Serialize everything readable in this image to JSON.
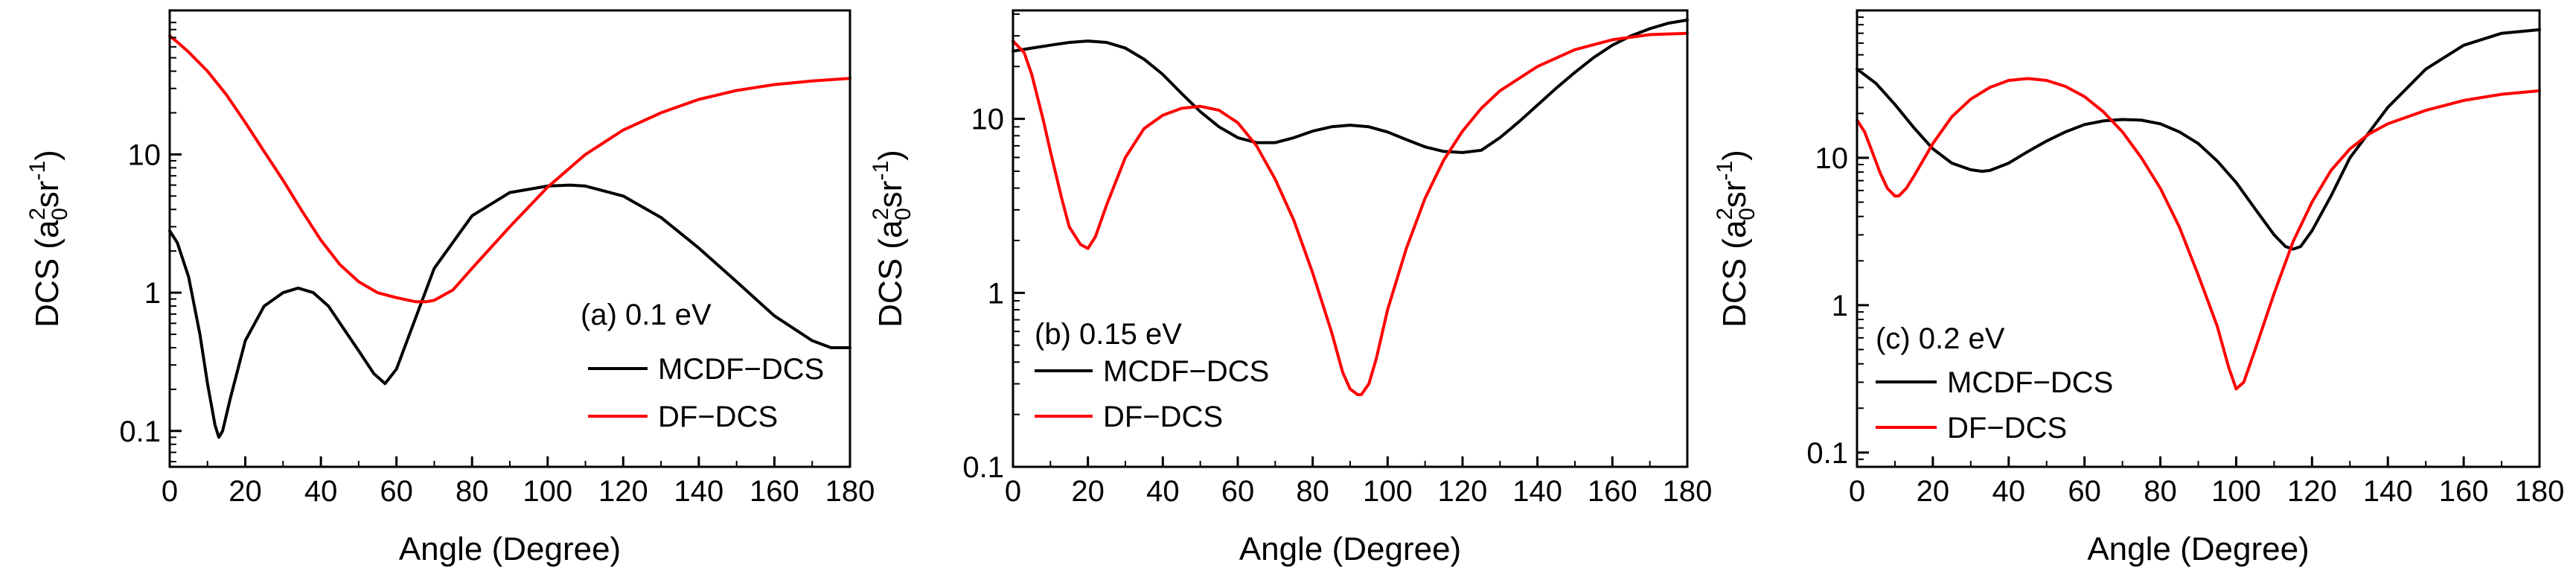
{
  "colors": {
    "mcdf": "#000000",
    "df": "#ff0000",
    "axis": "#000000"
  },
  "chart_data": [
    {
      "type": "line",
      "panel_label": "(a) 0.1 eV",
      "xlabel": "Angle (Degree)",
      "ylabel": {
        "base": "DCS (a",
        "sub": "0",
        "sup": "2",
        "mid": "sr",
        "sup2": "-1",
        "end": ")"
      },
      "xlim": [
        0,
        180
      ],
      "ylim": [
        0.055,
        110
      ],
      "yscale": "log",
      "xticks": [
        0,
        20,
        40,
        60,
        80,
        100,
        120,
        140,
        160,
        180
      ],
      "yticks": [
        0.1,
        1,
        10
      ],
      "ytick_labels": [
        "0.1",
        "1",
        "10"
      ],
      "legend_position": "lower-right",
      "series": [
        {
          "name": "MCDF−DCS",
          "color": "#000000",
          "x": [
            0,
            2,
            5,
            8,
            10,
            12,
            13,
            14,
            16,
            20,
            25,
            30,
            34,
            38,
            42,
            46,
            50,
            54,
            57,
            60,
            65,
            70,
            80,
            90,
            100,
            106,
            110,
            120,
            130,
            140,
            150,
            160,
            170,
            175,
            180
          ],
          "y": [
            2.8,
            2.3,
            1.3,
            0.5,
            0.22,
            0.11,
            0.09,
            0.1,
            0.17,
            0.45,
            0.8,
            1.0,
            1.08,
            1.0,
            0.8,
            0.55,
            0.38,
            0.26,
            0.22,
            0.28,
            0.65,
            1.5,
            3.6,
            5.3,
            5.9,
            6.0,
            5.9,
            5.0,
            3.5,
            2.1,
            1.2,
            0.68,
            0.45,
            0.4,
            0.4
          ]
        },
        {
          "name": "DF−DCS",
          "color": "#ff0000",
          "x": [
            0,
            2,
            5,
            10,
            15,
            20,
            25,
            30,
            35,
            40,
            45,
            50,
            55,
            60,
            65,
            68,
            70,
            75,
            80,
            90,
            100,
            110,
            120,
            130,
            140,
            150,
            160,
            170,
            180
          ],
          "y": [
            72,
            65,
            55,
            40,
            27,
            17,
            10.5,
            6.5,
            3.9,
            2.4,
            1.6,
            1.2,
            1.0,
            0.92,
            0.86,
            0.86,
            0.88,
            1.05,
            1.5,
            3.0,
            5.8,
            10,
            15,
            20,
            25,
            29,
            32,
            34,
            35.5
          ]
        }
      ]
    },
    {
      "type": "line",
      "panel_label": "(b) 0.15 eV",
      "xlabel": "Angle (Degree)",
      "ylabel": {
        "base": "DCS (a",
        "sub": "0",
        "sup": "2",
        "mid": "sr",
        "sup2": "-1",
        "end": ")"
      },
      "xlim": [
        0,
        180
      ],
      "ylim": [
        0.1,
        42
      ],
      "yscale": "log",
      "xticks": [
        0,
        20,
        40,
        60,
        80,
        100,
        120,
        140,
        160,
        180
      ],
      "yticks": [
        0.1,
        1,
        10
      ],
      "ytick_labels": [
        "0.1",
        "1",
        "10"
      ],
      "legend_position": "lower-left",
      "series": [
        {
          "name": "MCDF−DCS",
          "color": "#000000",
          "x": [
            0,
            5,
            10,
            15,
            20,
            25,
            30,
            35,
            40,
            45,
            50,
            55,
            60,
            65,
            70,
            75,
            80,
            85,
            90,
            95,
            100,
            105,
            110,
            115,
            120,
            125,
            130,
            135,
            140,
            145,
            150,
            155,
            160,
            165,
            170,
            175,
            180
          ],
          "y": [
            24.5,
            25.5,
            26.5,
            27.5,
            28,
            27.5,
            25.5,
            22,
            18,
            14,
            11,
            9,
            7.8,
            7.3,
            7.3,
            7.8,
            8.5,
            9.0,
            9.2,
            9.0,
            8.4,
            7.6,
            6.9,
            6.5,
            6.4,
            6.6,
            7.8,
            9.6,
            12,
            15,
            18.5,
            22.5,
            26.5,
            30,
            33,
            35.5,
            37
          ]
        },
        {
          "name": "DF−DCS",
          "color": "#ff0000",
          "x": [
            0,
            3,
            5,
            8,
            10,
            13,
            15,
            18,
            20,
            22,
            25,
            30,
            35,
            40,
            45,
            50,
            55,
            60,
            65,
            70,
            75,
            80,
            85,
            88,
            90,
            92,
            93,
            95,
            97,
            100,
            105,
            110,
            115,
            120,
            125,
            130,
            140,
            150,
            160,
            170,
            180
          ],
          "y": [
            28,
            24,
            18,
            10,
            6.5,
            3.5,
            2.4,
            1.9,
            1.8,
            2.1,
            3.2,
            6.0,
            8.8,
            10.5,
            11.5,
            11.8,
            11.2,
            9.5,
            7.0,
            4.5,
            2.6,
            1.3,
            0.6,
            0.35,
            0.28,
            0.26,
            0.26,
            0.3,
            0.42,
            0.8,
            1.8,
            3.5,
            5.8,
            8.5,
            11.5,
            14.5,
            20,
            25,
            28.5,
            30.5,
            31
          ]
        }
      ]
    },
    {
      "type": "line",
      "panel_label": "(c) 0.2 eV",
      "xlabel": "Angle (Degree)",
      "ylabel": {
        "base": "DCS (a",
        "sub": "0",
        "sup": "2",
        "mid": "sr",
        "sup2": "-1",
        "end": ")"
      },
      "xlim": [
        0,
        180
      ],
      "ylim": [
        0.08,
        100
      ],
      "yscale": "log",
      "xticks": [
        0,
        20,
        40,
        60,
        80,
        100,
        120,
        140,
        160,
        180
      ],
      "yticks": [
        0.1,
        1,
        10
      ],
      "ytick_labels": [
        "0.1",
        "1",
        "10"
      ],
      "legend_position": "lower-left",
      "series": [
        {
          "name": "MCDF−DCS",
          "color": "#000000",
          "x": [
            0,
            5,
            10,
            15,
            20,
            25,
            30,
            33,
            35,
            40,
            45,
            50,
            55,
            60,
            65,
            70,
            75,
            80,
            85,
            90,
            95,
            100,
            105,
            110,
            113,
            115,
            117,
            120,
            125,
            130,
            140,
            150,
            160,
            170,
            180
          ],
          "y": [
            40,
            32,
            23,
            16,
            11.5,
            9.2,
            8.3,
            8.1,
            8.2,
            9.2,
            11,
            13,
            15,
            16.8,
            17.8,
            18.2,
            18,
            17,
            15,
            12.5,
            9.5,
            6.8,
            4.5,
            3.0,
            2.5,
            2.4,
            2.5,
            3.2,
            5.5,
            10,
            22,
            40,
            58,
            70,
            74
          ]
        },
        {
          "name": "DF−DCS",
          "color": "#ff0000",
          "x": [
            0,
            2,
            4,
            6,
            8,
            10,
            11,
            13,
            15,
            20,
            25,
            30,
            35,
            40,
            45,
            50,
            55,
            60,
            65,
            70,
            75,
            80,
            85,
            90,
            95,
            98,
            100,
            102,
            105,
            110,
            115,
            120,
            125,
            130,
            135,
            140,
            150,
            160,
            170,
            180
          ],
          "y": [
            18,
            15,
            11,
            8,
            6.2,
            5.5,
            5.5,
            6.2,
            7.5,
            12.5,
            19,
            25,
            30,
            33.5,
            34.5,
            33.5,
            30.5,
            26,
            20.5,
            15,
            10,
            6.2,
            3.4,
            1.6,
            0.72,
            0.38,
            0.27,
            0.3,
            0.5,
            1.2,
            2.7,
            5.0,
            8.2,
            11.5,
            14.5,
            17,
            21,
            24.5,
            27,
            28.5
          ]
        }
      ]
    }
  ]
}
